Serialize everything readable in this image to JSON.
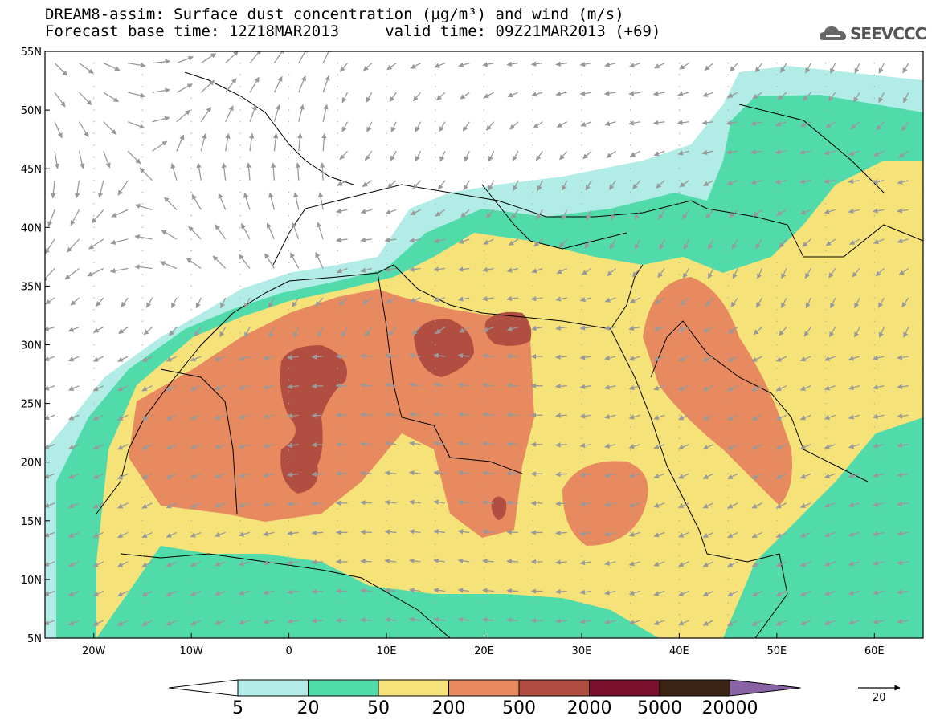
{
  "header": {
    "title_line1": "DREAM8-assim: Surface dust concentration (µg/m³) and wind (m/s)",
    "title_line2": "Forecast base time: 12Z18MAR2013     valid time: 09Z21MAR2013 (+69)"
  },
  "logo": {
    "text": "SEEVCCC",
    "icon": "cloud-logo-icon"
  },
  "axes": {
    "lat_labels": [
      "55N",
      "50N",
      "45N",
      "40N",
      "35N",
      "30N",
      "25N",
      "20N",
      "15N",
      "10N",
      "5N"
    ],
    "lon_labels": [
      "20W",
      "10W",
      "0",
      "10E",
      "20E",
      "30E",
      "40E",
      "50E",
      "60E"
    ],
    "lat_range": [
      5,
      55
    ],
    "lon_range": [
      -25,
      65
    ]
  },
  "legend": {
    "colors": [
      "#b2ece6",
      "#52dbaa",
      "#f5e37a",
      "#e78a60",
      "#b04e42",
      "#7a0f2e",
      "#3b2314",
      "#8a62a6"
    ],
    "labels": [
      "5",
      "20",
      "50",
      "200",
      "500",
      "2000",
      "5000",
      "20000"
    ]
  },
  "wind_reference": {
    "value": "20"
  }
}
